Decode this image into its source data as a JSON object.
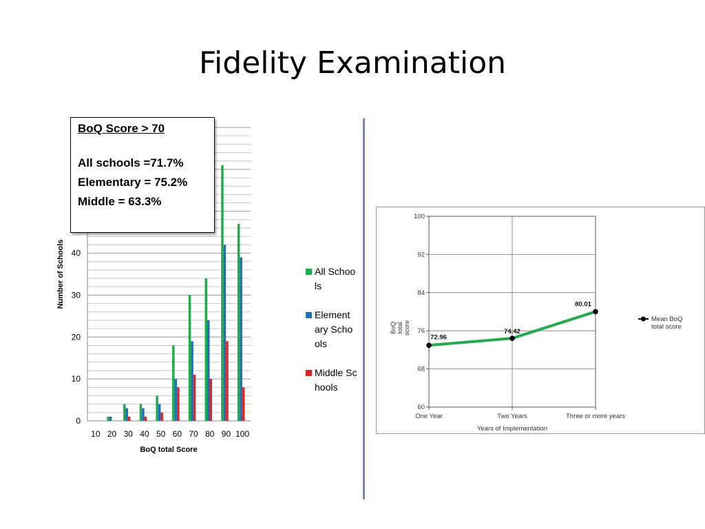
{
  "slide": {
    "title": "Fidelity Examination"
  },
  "callout": {
    "heading": "BoQ Score > 70",
    "lines": [
      "All schools =71.7%",
      "Elementary = 75.2%",
      "Middle = 63.3%"
    ]
  },
  "chart_data": [
    {
      "type": "bar",
      "categories": [
        "10",
        "20",
        "30",
        "40",
        "50",
        "60",
        "70",
        "80",
        "90",
        "100"
      ],
      "series": [
        {
          "name": "All Schools",
          "color": "#1fad4b",
          "values": [
            0,
            1,
            4,
            4,
            6,
            18,
            30,
            34,
            61,
            47
          ]
        },
        {
          "name": "Elementary Schools",
          "color": "#1f6fbf",
          "values": [
            0,
            1,
            3,
            3,
            4,
            10,
            19,
            24,
            42,
            39
          ]
        },
        {
          "name": "Middle Schools",
          "color": "#e52421",
          "values": [
            0,
            0,
            1,
            1,
            2,
            8,
            11,
            10,
            19,
            8
          ]
        }
      ],
      "legend_labels": [
        "All Schools",
        "Element ary Schools",
        "Middle Schools"
      ],
      "xlabel": "BoQ total Score",
      "ylabel": "Number  of  Schools",
      "ylim": [
        0,
        70
      ],
      "yticks": [
        "0",
        "10",
        "20",
        "30",
        "40"
      ],
      "grid": true,
      "legend": "right"
    },
    {
      "type": "line",
      "categories": [
        "One Year",
        "Two Years",
        "Three or more years"
      ],
      "series": [
        {
          "name": "Mean BoQ total score",
          "color": "#1fad4b",
          "values": [
            72.96,
            74.42,
            80.01
          ]
        }
      ],
      "data_labels": [
        "72.96",
        "74.42",
        "80.01"
      ],
      "xlabel": "Years of Implementation",
      "ylabel": "BoQ total score",
      "ylim": [
        60,
        100
      ],
      "yticks": [
        "60",
        "68",
        "76",
        "84",
        "92",
        "100"
      ],
      "legend_label": "Mean BoQ total score",
      "grid": true,
      "legend": "right"
    }
  ]
}
